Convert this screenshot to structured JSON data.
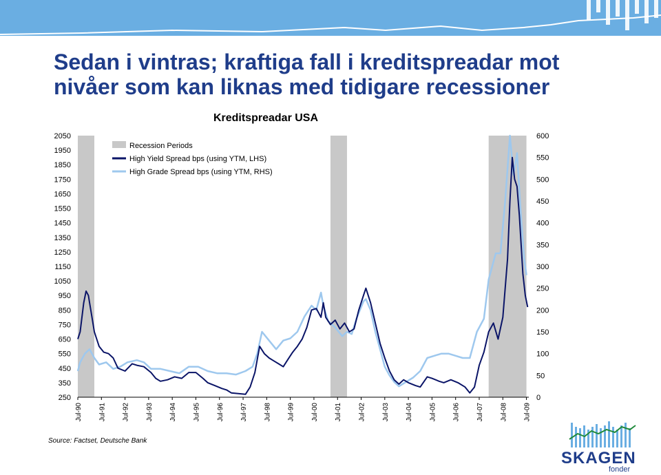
{
  "slide": {
    "title": "Sedan i vintras; kraftiga fall i kreditspreadar mot nivåer som kan liknas med tidigare recessioner",
    "subtitle": "Kreditspreadar USA",
    "source": "Source: Factset, Deutsche Bank",
    "logo_text": "SKAGEN",
    "logo_sub": "fonder"
  },
  "colors": {
    "title": "#1f3d8a",
    "banner": "#6aaee2",
    "high_yield": "#0a1467",
    "high_grade": "#9ec8ee",
    "recession": "#c8c8c8"
  },
  "chart_data": {
    "type": "line",
    "legend": [
      "Recession Periods",
      "High Yield Spread bps (using YTM, LHS)",
      "High Grade Spread  bps (using YTM, RHS)"
    ],
    "legend_position": "top-left",
    "x_ticks": [
      "Jul-90",
      "Jul-91",
      "Jul-92",
      "Jul-93",
      "Jul-94",
      "Jul-95",
      "Jul-96",
      "Jul-97",
      "Jul-98",
      "Jul-99",
      "Jul-00",
      "Jul-01",
      "Jul-02",
      "Jul-03",
      "Jul-04",
      "Jul-05",
      "Jul-06",
      "Jul-07",
      "Jul-08",
      "Jul-09"
    ],
    "y_left_ticks": [
      "2050",
      "1950",
      "1850",
      "1750",
      "1650",
      "1550",
      "1450",
      "1350",
      "1250",
      "1150",
      "1050",
      "950",
      "850",
      "750",
      "650",
      "550",
      "450",
      "350",
      "250"
    ],
    "y_right_ticks": [
      "600",
      "550",
      "500",
      "450",
      "400",
      "350",
      "300",
      "250",
      "200",
      "150",
      "100",
      "50",
      "0"
    ],
    "y_left_range": [
      250,
      2050
    ],
    "y_right_range": [
      0,
      600
    ],
    "x_range": [
      1990.5,
      2009.6
    ],
    "recessions": [
      [
        1990.5,
        1991.2
      ],
      [
        2001.2,
        2001.9
      ],
      [
        2007.9,
        2009.5
      ]
    ],
    "series": [
      {
        "name": "High Yield Spread bps (using YTM, LHS)",
        "axis": "left",
        "points": [
          [
            1990.5,
            650
          ],
          [
            1990.6,
            700
          ],
          [
            1990.75,
            900
          ],
          [
            1990.85,
            980
          ],
          [
            1990.95,
            950
          ],
          [
            1991.0,
            900
          ],
          [
            1991.1,
            800
          ],
          [
            1991.2,
            700
          ],
          [
            1991.4,
            600
          ],
          [
            1991.6,
            560
          ],
          [
            1991.8,
            550
          ],
          [
            1992.0,
            520
          ],
          [
            1992.2,
            450
          ],
          [
            1992.5,
            430
          ],
          [
            1992.8,
            480
          ],
          [
            1993.0,
            470
          ],
          [
            1993.3,
            460
          ],
          [
            1993.6,
            420
          ],
          [
            1993.8,
            380
          ],
          [
            1994.0,
            360
          ],
          [
            1994.3,
            370
          ],
          [
            1994.6,
            390
          ],
          [
            1994.9,
            380
          ],
          [
            1995.2,
            420
          ],
          [
            1995.5,
            420
          ],
          [
            1995.8,
            380
          ],
          [
            1996.0,
            350
          ],
          [
            1996.3,
            330
          ],
          [
            1996.6,
            310
          ],
          [
            1996.8,
            300
          ],
          [
            1997.0,
            280
          ],
          [
            1997.3,
            275
          ],
          [
            1997.6,
            270
          ],
          [
            1997.8,
            320
          ],
          [
            1998.0,
            420
          ],
          [
            1998.2,
            600
          ],
          [
            1998.4,
            550
          ],
          [
            1998.6,
            520
          ],
          [
            1998.8,
            500
          ],
          [
            1999.0,
            480
          ],
          [
            1999.2,
            460
          ],
          [
            1999.4,
            510
          ],
          [
            1999.6,
            560
          ],
          [
            1999.8,
            600
          ],
          [
            2000.0,
            650
          ],
          [
            2000.2,
            730
          ],
          [
            2000.4,
            850
          ],
          [
            2000.6,
            860
          ],
          [
            2000.8,
            800
          ],
          [
            2000.9,
            900
          ],
          [
            2001.0,
            800
          ],
          [
            2001.2,
            750
          ],
          [
            2001.4,
            780
          ],
          [
            2001.6,
            720
          ],
          [
            2001.8,
            760
          ],
          [
            2002.0,
            700
          ],
          [
            2002.2,
            720
          ],
          [
            2002.4,
            850
          ],
          [
            2002.6,
            950
          ],
          [
            2002.7,
            1000
          ],
          [
            2002.9,
            900
          ],
          [
            2003.1,
            760
          ],
          [
            2003.3,
            620
          ],
          [
            2003.5,
            520
          ],
          [
            2003.7,
            430
          ],
          [
            2003.9,
            370
          ],
          [
            2004.1,
            340
          ],
          [
            2004.3,
            370
          ],
          [
            2004.5,
            350
          ],
          [
            2004.8,
            330
          ],
          [
            2005.0,
            320
          ],
          [
            2005.3,
            390
          ],
          [
            2005.5,
            380
          ],
          [
            2005.8,
            360
          ],
          [
            2006.0,
            350
          ],
          [
            2006.3,
            370
          ],
          [
            2006.6,
            350
          ],
          [
            2006.9,
            320
          ],
          [
            2007.1,
            280
          ],
          [
            2007.3,
            320
          ],
          [
            2007.5,
            470
          ],
          [
            2007.7,
            560
          ],
          [
            2007.9,
            700
          ],
          [
            2008.1,
            760
          ],
          [
            2008.3,
            650
          ],
          [
            2008.5,
            800
          ],
          [
            2008.7,
            1200
          ],
          [
            2008.8,
            1600
          ],
          [
            2008.9,
            1900
          ],
          [
            2009.0,
            1750
          ],
          [
            2009.1,
            1700
          ],
          [
            2009.2,
            1500
          ],
          [
            2009.35,
            1100
          ],
          [
            2009.45,
            950
          ],
          [
            2009.55,
            870
          ]
        ]
      },
      {
        "name": "High Grade Spread  bps (using YTM, RHS)",
        "axis": "right",
        "points": [
          [
            1990.5,
            60
          ],
          [
            1990.6,
            80
          ],
          [
            1990.8,
            100
          ],
          [
            1991.0,
            110
          ],
          [
            1991.2,
            90
          ],
          [
            1991.4,
            75
          ],
          [
            1991.7,
            80
          ],
          [
            1992.0,
            65
          ],
          [
            1992.3,
            70
          ],
          [
            1992.6,
            80
          ],
          [
            1993.0,
            85
          ],
          [
            1993.3,
            80
          ],
          [
            1993.6,
            65
          ],
          [
            1994.0,
            65
          ],
          [
            1994.4,
            60
          ],
          [
            1994.8,
            55
          ],
          [
            1995.2,
            70
          ],
          [
            1995.6,
            70
          ],
          [
            1996.0,
            60
          ],
          [
            1996.4,
            55
          ],
          [
            1996.8,
            55
          ],
          [
            1997.2,
            52
          ],
          [
            1997.6,
            60
          ],
          [
            1997.9,
            70
          ],
          [
            1998.1,
            100
          ],
          [
            1998.3,
            150
          ],
          [
            1998.6,
            130
          ],
          [
            1998.9,
            110
          ],
          [
            1999.2,
            130
          ],
          [
            1999.5,
            135
          ],
          [
            1999.8,
            150
          ],
          [
            2000.1,
            185
          ],
          [
            2000.4,
            210
          ],
          [
            2000.6,
            200
          ],
          [
            2000.8,
            240
          ],
          [
            2000.9,
            210
          ],
          [
            2001.1,
            175
          ],
          [
            2001.4,
            160
          ],
          [
            2001.7,
            140
          ],
          [
            2001.9,
            150
          ],
          [
            2002.1,
            145
          ],
          [
            2002.3,
            180
          ],
          [
            2002.6,
            220
          ],
          [
            2002.7,
            225
          ],
          [
            2002.9,
            200
          ],
          [
            2003.1,
            150
          ],
          [
            2003.3,
            110
          ],
          [
            2003.5,
            70
          ],
          [
            2003.7,
            50
          ],
          [
            2003.9,
            35
          ],
          [
            2004.1,
            25
          ],
          [
            2004.4,
            35
          ],
          [
            2004.7,
            45
          ],
          [
            2005.0,
            60
          ],
          [
            2005.3,
            90
          ],
          [
            2005.6,
            95
          ],
          [
            2005.9,
            100
          ],
          [
            2006.2,
            100
          ],
          [
            2006.5,
            95
          ],
          [
            2006.8,
            90
          ],
          [
            2007.1,
            90
          ],
          [
            2007.4,
            150
          ],
          [
            2007.7,
            180
          ],
          [
            2007.9,
            270
          ],
          [
            2008.2,
            330
          ],
          [
            2008.4,
            330
          ],
          [
            2008.6,
            450
          ],
          [
            2008.8,
            600
          ],
          [
            2008.95,
            510
          ],
          [
            2009.1,
            560
          ],
          [
            2009.25,
            430
          ],
          [
            2009.4,
            320
          ],
          [
            2009.5,
            280
          ]
        ]
      }
    ]
  }
}
